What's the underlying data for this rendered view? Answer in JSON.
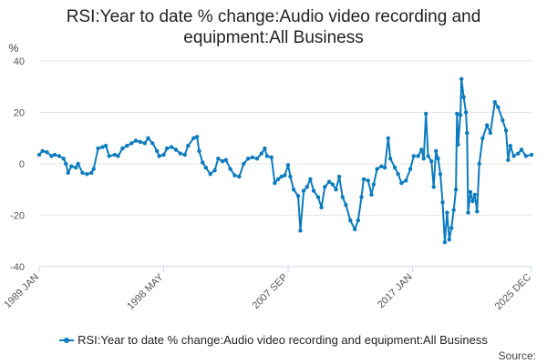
{
  "chart_data": {
    "type": "line",
    "title": "RSI:Year to date % change:Audio video recording and equipment:All Business",
    "ylabel": "%",
    "xlabel": "",
    "ylim": [
      -40,
      40
    ],
    "yticks": [
      40,
      20,
      0,
      -20,
      -40
    ],
    "xlim": [
      "1989-01",
      "2025-12"
    ],
    "xticks": [
      "1989 JAN",
      "1998 MAY",
      "2007 SEP",
      "2017 JAN",
      "2025 DEC"
    ],
    "grid": "horizontal",
    "legend_position": "bottom",
    "series": [
      {
        "name": "RSI:Year to date % change:Audio video recording and equipment:All Business",
        "color": "#0b7bc0",
        "points": [
          [
            "1989-01",
            3.5
          ],
          [
            "1989-04",
            5.0
          ],
          [
            "1989-08",
            4.5
          ],
          [
            "1989-12",
            3.0
          ],
          [
            "1990-03",
            3.5
          ],
          [
            "1990-07",
            3.0
          ],
          [
            "1990-11",
            2.0
          ],
          [
            "1991-01",
            0.0
          ],
          [
            "1991-03",
            -3.5
          ],
          [
            "1991-06",
            -1.0
          ],
          [
            "1991-10",
            -1.5
          ],
          [
            "1991-12",
            0.0
          ],
          [
            "1992-04",
            -3.5
          ],
          [
            "1992-08",
            -4.0
          ],
          [
            "1992-12",
            -3.5
          ],
          [
            "1993-02",
            -2.0
          ],
          [
            "1993-06",
            6.0
          ],
          [
            "1993-10",
            6.5
          ],
          [
            "1994-01",
            7.0
          ],
          [
            "1994-04",
            3.0
          ],
          [
            "1994-09",
            3.5
          ],
          [
            "1994-12",
            3.0
          ],
          [
            "1995-04",
            6.0
          ],
          [
            "1995-08",
            7.0
          ],
          [
            "1995-12",
            8.0
          ],
          [
            "1996-04",
            9.0
          ],
          [
            "1996-08",
            8.5
          ],
          [
            "1996-12",
            8.0
          ],
          [
            "1997-03",
            10.0
          ],
          [
            "1997-07",
            8.0
          ],
          [
            "1997-11",
            5.0
          ],
          [
            "1998-01",
            3.0
          ],
          [
            "1998-05",
            3.5
          ],
          [
            "1998-08",
            6.0
          ],
          [
            "1998-12",
            6.5
          ],
          [
            "1999-04",
            5.5
          ],
          [
            "1999-08",
            4.0
          ],
          [
            "1999-12",
            3.5
          ],
          [
            "2000-03",
            7.0
          ],
          [
            "2000-08",
            10.0
          ],
          [
            "2000-11",
            10.5
          ],
          [
            "2001-01",
            5.0
          ],
          [
            "2001-04",
            0.5
          ],
          [
            "2001-07",
            -1.5
          ],
          [
            "2001-11",
            -4.0
          ],
          [
            "2002-03",
            -2.5
          ],
          [
            "2002-06",
            2.0
          ],
          [
            "2002-10",
            1.0
          ],
          [
            "2003-01",
            1.5
          ],
          [
            "2003-05",
            -2.0
          ],
          [
            "2003-09",
            -4.5
          ],
          [
            "2004-01",
            -5.0
          ],
          [
            "2004-05",
            0.0
          ],
          [
            "2004-09",
            2.0
          ],
          [
            "2005-01",
            2.5
          ],
          [
            "2005-05",
            2.0
          ],
          [
            "2005-09",
            4.0
          ],
          [
            "2005-12",
            6.0
          ],
          [
            "2006-02",
            3.0
          ],
          [
            "2006-06",
            2.5
          ],
          [
            "2006-09",
            -7.5
          ],
          [
            "2006-12",
            -6.0
          ],
          [
            "2007-03",
            -5.0
          ],
          [
            "2007-06",
            -4.5
          ],
          [
            "2007-09",
            -0.5
          ],
          [
            "2007-11",
            -5.0
          ],
          [
            "2008-02",
            -10.0
          ],
          [
            "2008-06",
            -12.5
          ],
          [
            "2008-08",
            -26.0
          ],
          [
            "2008-11",
            -10.5
          ],
          [
            "2009-02",
            -9.0
          ],
          [
            "2009-05",
            -6.0
          ],
          [
            "2009-08",
            -10.5
          ],
          [
            "2009-12",
            -13.0
          ],
          [
            "2010-03",
            -17.0
          ],
          [
            "2010-06",
            -9.0
          ],
          [
            "2010-10",
            -7.0
          ],
          [
            "2011-01",
            -8.0
          ],
          [
            "2011-04",
            -10.0
          ],
          [
            "2011-07",
            -5.0
          ],
          [
            "2011-10",
            -13.0
          ],
          [
            "2012-01",
            -16.0
          ],
          [
            "2012-05",
            -22.0
          ],
          [
            "2012-09",
            -25.5
          ],
          [
            "2012-12",
            -22.0
          ],
          [
            "2013-03",
            -13.0
          ],
          [
            "2013-05",
            -6.0
          ],
          [
            "2013-09",
            -6.5
          ],
          [
            "2013-12",
            -12.0
          ],
          [
            "2014-02",
            -8.0
          ],
          [
            "2014-05",
            -2.0
          ],
          [
            "2014-09",
            -1.0
          ],
          [
            "2014-12",
            -1.5
          ],
          [
            "2015-03",
            10.0
          ],
          [
            "2015-05",
            2.0
          ],
          [
            "2015-09",
            -1.5
          ],
          [
            "2015-12",
            -4.0
          ],
          [
            "2016-03",
            -7.5
          ],
          [
            "2016-07",
            -6.5
          ],
          [
            "2016-11",
            -2.0
          ],
          [
            "2017-02",
            3.0
          ],
          [
            "2017-06",
            3.0
          ],
          [
            "2017-09",
            5.5
          ],
          [
            "2017-11",
            2.0
          ],
          [
            "2018-01",
            19.5
          ],
          [
            "2018-03",
            3.0
          ],
          [
            "2018-06",
            1.0
          ],
          [
            "2018-08",
            -9.0
          ],
          [
            "2018-10",
            5.0
          ],
          [
            "2018-12",
            2.0
          ],
          [
            "2019-02",
            -4.0
          ],
          [
            "2019-04",
            -15.0
          ],
          [
            "2019-06",
            -30.5
          ],
          [
            "2019-08",
            -19.0
          ],
          [
            "2019-10",
            -29.5
          ],
          [
            "2019-12",
            -25.0
          ],
          [
            "2020-02",
            -18.0
          ],
          [
            "2020-04",
            -10.0
          ],
          [
            "2020-05",
            19.5
          ],
          [
            "2020-06",
            7.5
          ],
          [
            "2020-08",
            19.0
          ],
          [
            "2020-09",
            33.0
          ],
          [
            "2020-11",
            26.0
          ],
          [
            "2021-01",
            20.0
          ],
          [
            "2021-02",
            12.0
          ],
          [
            "2021-03",
            -19.0
          ],
          [
            "2021-05",
            -11.0
          ],
          [
            "2021-07",
            -14.5
          ],
          [
            "2021-09",
            -12.0
          ],
          [
            "2021-11",
            -18.5
          ],
          [
            "2022-01",
            0.0
          ],
          [
            "2022-04",
            10.0
          ],
          [
            "2022-08",
            15.0
          ],
          [
            "2022-11",
            12.0
          ],
          [
            "2023-03",
            24.0
          ],
          [
            "2023-06",
            22.0
          ],
          [
            "2023-10",
            17.0
          ],
          [
            "2024-01",
            13.0
          ],
          [
            "2024-03",
            1.5
          ],
          [
            "2024-05",
            7.0
          ],
          [
            "2024-08",
            3.0
          ],
          [
            "2024-12",
            4.0
          ],
          [
            "2025-03",
            5.5
          ],
          [
            "2025-07",
            3.0
          ],
          [
            "2025-12",
            3.5
          ]
        ]
      }
    ]
  },
  "legend": {
    "label": "RSI:Year to date % change:Audio video recording and equipment:All Business"
  },
  "source": {
    "label": "Source:"
  }
}
